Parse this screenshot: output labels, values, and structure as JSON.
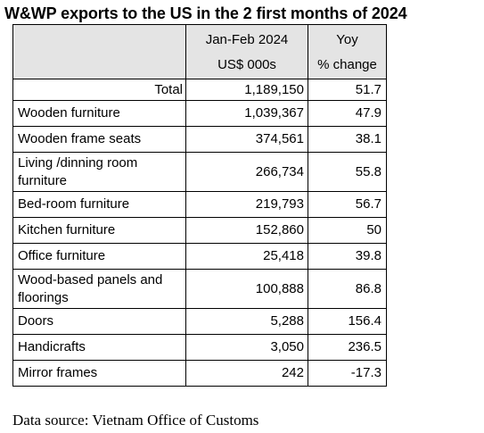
{
  "title": "W&WP exports to the US in the 2 first months of 2024",
  "table": {
    "header": {
      "value_col_line1": "Jan-Feb 2024",
      "value_col_line2": "US$ 000s",
      "yoy_col_line1": "Yoy",
      "yoy_col_line2": "% change"
    },
    "total": {
      "label": "Total",
      "value": "1,189,150",
      "yoy": "51.7"
    },
    "rows": [
      {
        "label": "Wooden furniture",
        "value": "1,039,367",
        "yoy": "47.9"
      },
      {
        "label": "Wooden frame seats",
        "value": "374,561",
        "yoy": "38.1"
      },
      {
        "label": "Living /dinning room furniture",
        "value": "266,734",
        "yoy": "55.8"
      },
      {
        "label": "Bed-room furniture",
        "value": "219,793",
        "yoy": "56.7"
      },
      {
        "label": "Kitchen furniture",
        "value": "152,860",
        "yoy": "50"
      },
      {
        "label": "Office furniture",
        "value": "25,418",
        "yoy": "39.8"
      },
      {
        "label": "Wood-based panels and floorings",
        "value": "100,888",
        "yoy": "86.8"
      },
      {
        "label": "Doors",
        "value": "5,288",
        "yoy": "156.4"
      },
      {
        "label": "Handicrafts",
        "value": "3,050",
        "yoy": "236.5"
      },
      {
        "label": "Mirror frames",
        "value": "242",
        "yoy": "-17.3"
      }
    ]
  },
  "source": "Data source: Vietnam Office of Customs",
  "colors": {
    "header_shading": "#e4e4e4",
    "border": "#000000",
    "text": "#000000"
  }
}
